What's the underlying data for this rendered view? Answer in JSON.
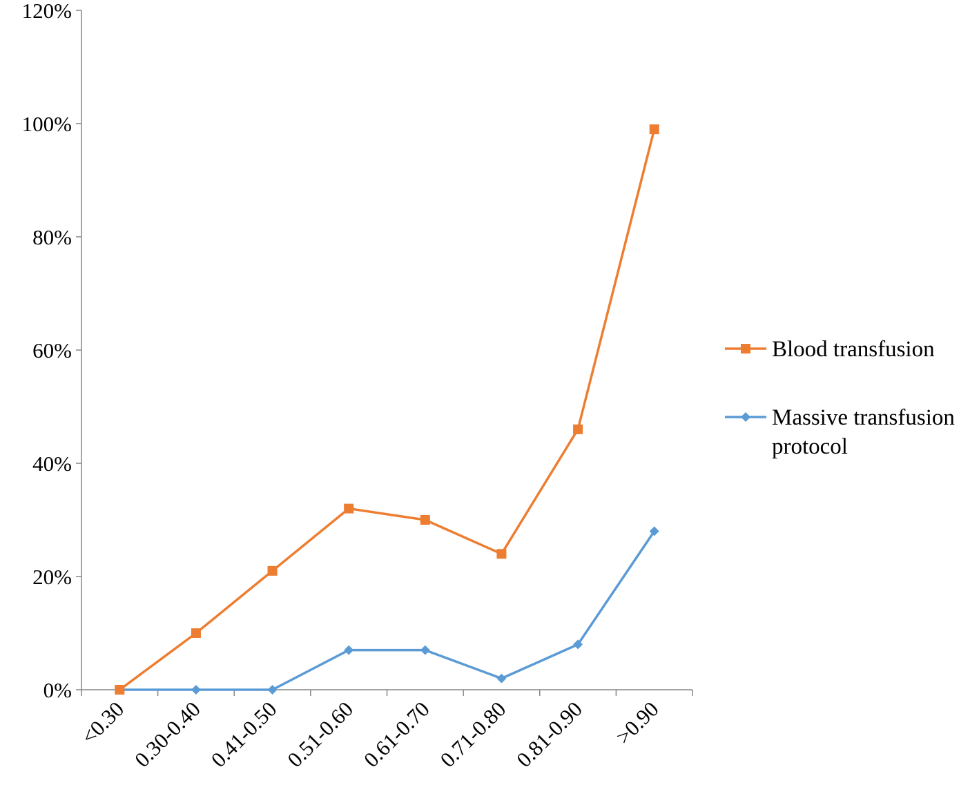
{
  "chart_data": {
    "type": "line",
    "title": "",
    "xlabel": "",
    "ylabel": "",
    "categories": [
      "<0.30",
      "0.30-0.40",
      "0.41-0.50",
      "0.51-0.60",
      "0.61-0.70",
      "0.71-0.80",
      "0.81-0.90",
      ">0.90"
    ],
    "ylim": [
      0,
      1.2
    ],
    "yticks": [
      0,
      0.2,
      0.4,
      0.6,
      0.8,
      1.0,
      1.2
    ],
    "ytick_labels": [
      "0%",
      "20%",
      "40%",
      "60%",
      "80%",
      "100%",
      "120%"
    ],
    "grid": false,
    "legend_position": "right",
    "series": [
      {
        "name": "Blood transfusion",
        "marker": "square",
        "color": "#ED7D31",
        "values": [
          0.0,
          0.1,
          0.21,
          0.32,
          0.3,
          0.24,
          0.46,
          0.99
        ]
      },
      {
        "name": "Massive transfusion protocol",
        "marker": "diamond",
        "color": "#5B9BD5",
        "values": [
          0.0,
          0.0,
          0.0,
          0.07,
          0.07,
          0.02,
          0.08,
          0.28
        ]
      }
    ],
    "legend": {
      "entries": [
        {
          "series": 0,
          "lines": [
            "Blood transfusion"
          ]
        },
        {
          "series": 1,
          "lines": [
            "Massive transfusion",
            "protocol"
          ]
        }
      ]
    }
  }
}
